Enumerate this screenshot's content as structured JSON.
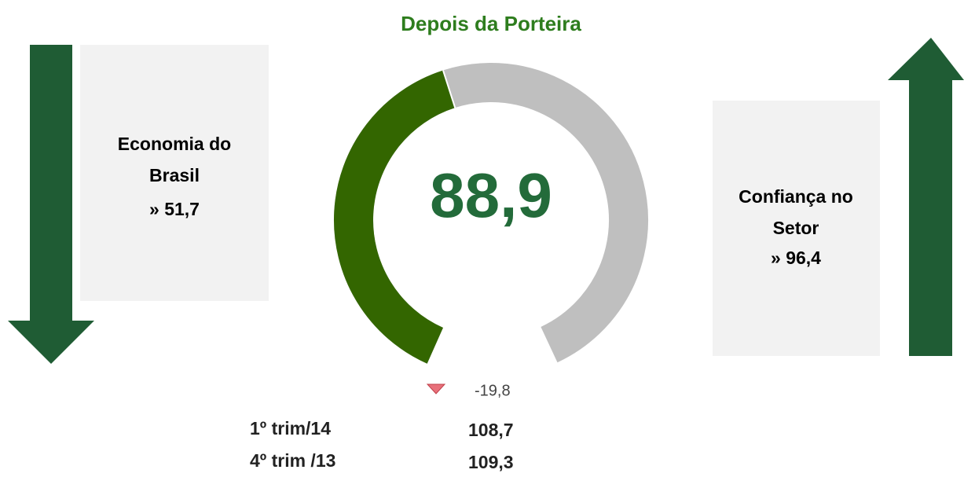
{
  "chart_data": {
    "type": "gauge",
    "title": "Depois da Porteira",
    "value": 88.9,
    "value_label": "88,9",
    "ylim": [
      0,
      200
    ],
    "color": "#336600",
    "track_color": "#bfbfbf",
    "indicators": [
      {
        "label_lines": [
          "Economia do",
          "Brasil"
        ],
        "value": 51.7,
        "value_label": "» 51,7"
      },
      {
        "label_lines": [
          "Confiança no",
          "Setor"
        ],
        "value": 96.4,
        "value_label": "» 96,4"
      }
    ],
    "change": {
      "value": -19.8,
      "label": "-19,8"
    },
    "history": [
      {
        "period": "1º trim/14",
        "value": 108.7,
        "value_label": "108,7"
      },
      {
        "period": "4º trim /13",
        "value": 109.3,
        "value_label": "109,3"
      }
    ]
  }
}
